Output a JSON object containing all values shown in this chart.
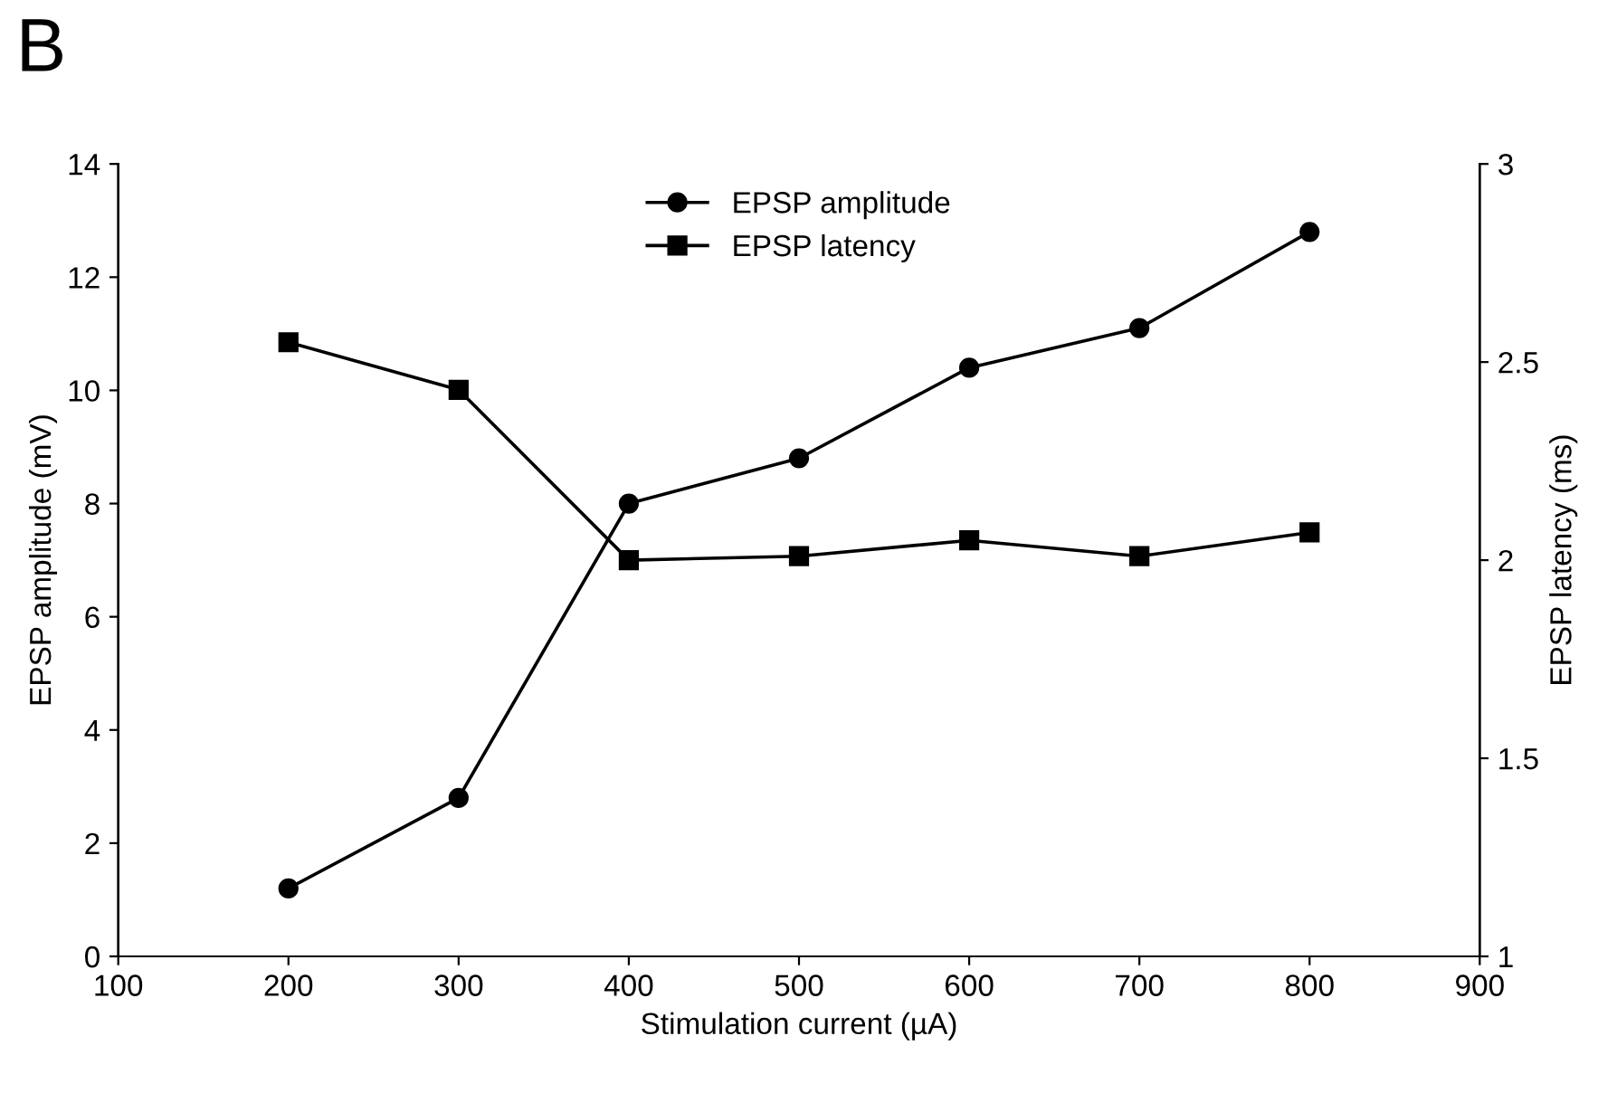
{
  "chart_data": {
    "type": "line",
    "title": "B",
    "xlabel": "Stimulation current (µA)",
    "ylabel": "EPSP amplitude (mV)",
    "y2label": "EPSP latency (ms)",
    "x": [
      200,
      300,
      400,
      500,
      600,
      700,
      800
    ],
    "series": [
      {
        "name": "EPSP amplitude",
        "color": "#000000",
        "marker": "circle",
        "values": [
          1.2,
          2.8,
          8.0,
          8.8,
          10.4,
          11.1,
          12.8
        ]
      },
      {
        "name": "EPSP latency",
        "color": "#000000",
        "marker": "square",
        "axis": "y2",
        "values": [
          2.55,
          2.43,
          2.0,
          2.01,
          2.05,
          2.01,
          2.07
        ]
      }
    ],
    "xlim": [
      100,
      900
    ],
    "xticks": [
      100,
      200,
      300,
      400,
      500,
      600,
      700,
      800,
      900
    ],
    "ylim": [
      0,
      14
    ],
    "yticks": [
      0,
      2,
      4,
      6,
      8,
      10,
      12,
      14
    ],
    "y2lim": [
      1,
      3
    ],
    "y2ticks": [
      1,
      1.5,
      2,
      2.5,
      3
    ],
    "legend": "top",
    "grid": false,
    "line_style": "solid"
  }
}
